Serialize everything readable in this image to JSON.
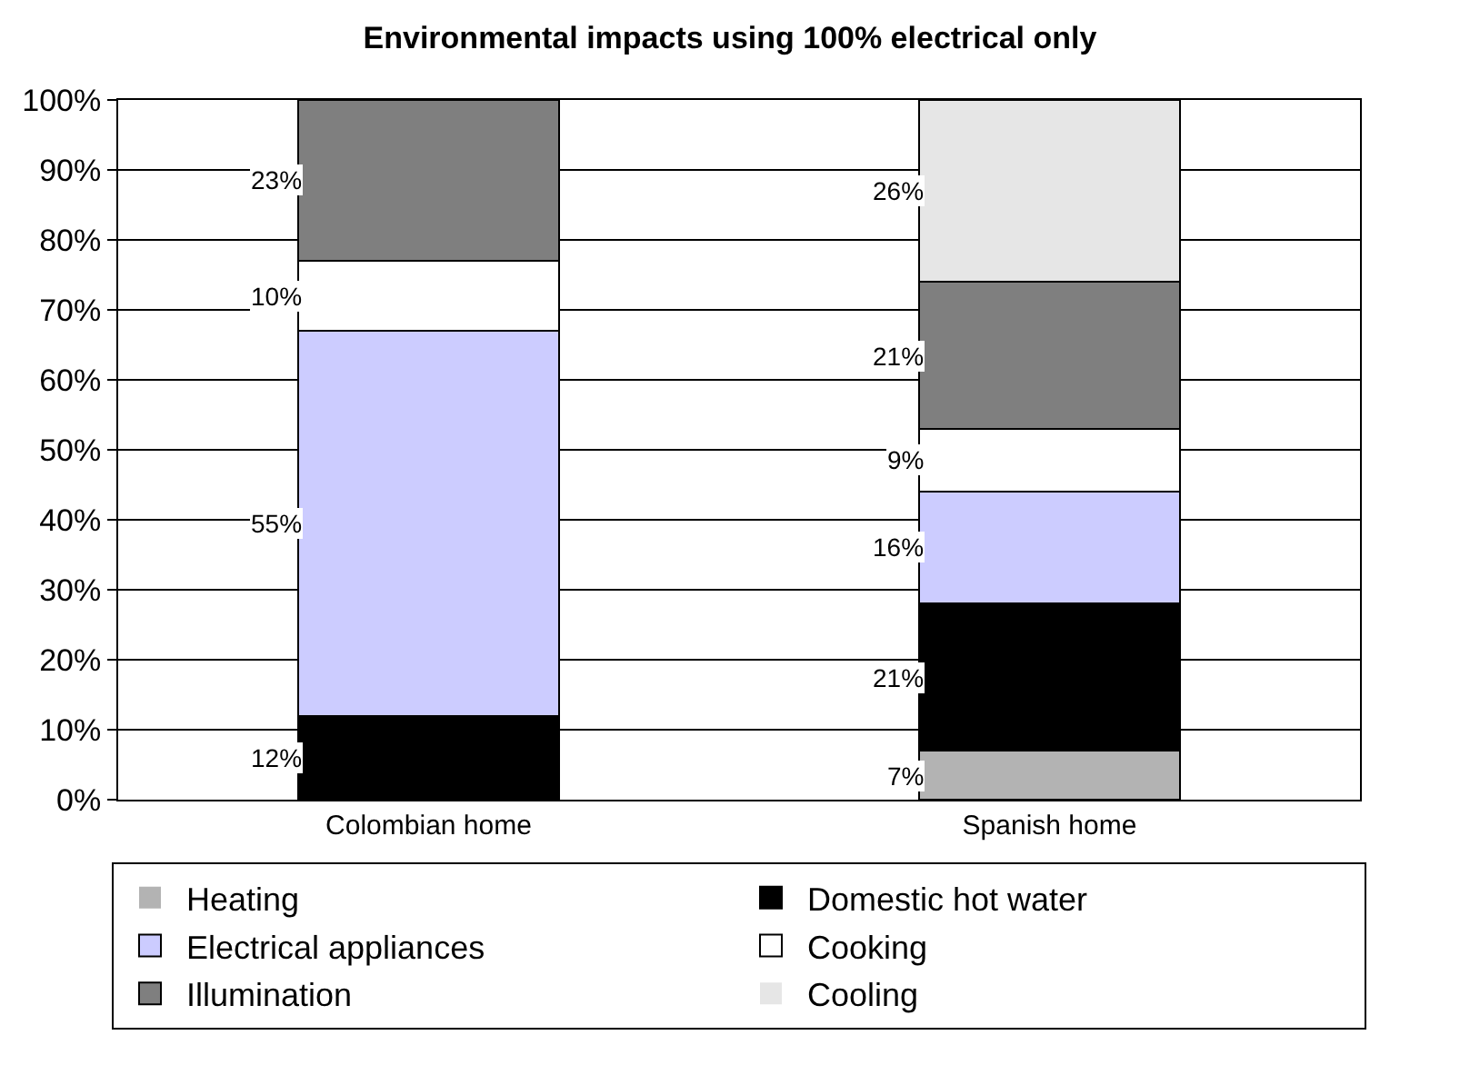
{
  "chart_data": {
    "type": "bar",
    "title": "Environmental impacts using 100% electrical only",
    "stacked": true,
    "categories": [
      "Colombian home",
      "Spanish home"
    ],
    "series": [
      {
        "name": "Heating",
        "color": "#b3b3b3",
        "values": [
          0,
          7
        ],
        "value_labels": [
          null,
          "7%"
        ]
      },
      {
        "name": "Domestic hot water",
        "color": "#000000",
        "values": [
          12,
          21
        ],
        "value_labels": [
          "12%",
          "21%"
        ]
      },
      {
        "name": "Electrical appliances",
        "color": "#ccccff",
        "values": [
          55,
          16
        ],
        "value_labels": [
          "55%",
          "16%"
        ]
      },
      {
        "name": "Cooking",
        "color": "#ffffff",
        "values": [
          10,
          9
        ],
        "value_labels": [
          "10%",
          "9%"
        ]
      },
      {
        "name": "Illumination",
        "color": "#7f7f7f",
        "values": [
          23,
          21
        ],
        "value_labels": [
          "23%",
          "21%"
        ]
      },
      {
        "name": "Cooling",
        "color": "#e6e6e6",
        "values": [
          0,
          26
        ],
        "value_labels": [
          null,
          "26%"
        ]
      }
    ],
    "ylim": [
      0,
      100
    ],
    "yticks": [
      {
        "value": 0,
        "label": "0%"
      },
      {
        "value": 10,
        "label": "10%"
      },
      {
        "value": 20,
        "label": "20%"
      },
      {
        "value": 30,
        "label": "30%"
      },
      {
        "value": 40,
        "label": "40%"
      },
      {
        "value": 50,
        "label": "50%"
      },
      {
        "value": 60,
        "label": "60%"
      },
      {
        "value": 70,
        "label": "70%"
      },
      {
        "value": 80,
        "label": "80%"
      },
      {
        "value": 90,
        "label": "90%"
      },
      {
        "value": 100,
        "label": "100%"
      }
    ],
    "grid": "y",
    "legend": "bottom"
  }
}
